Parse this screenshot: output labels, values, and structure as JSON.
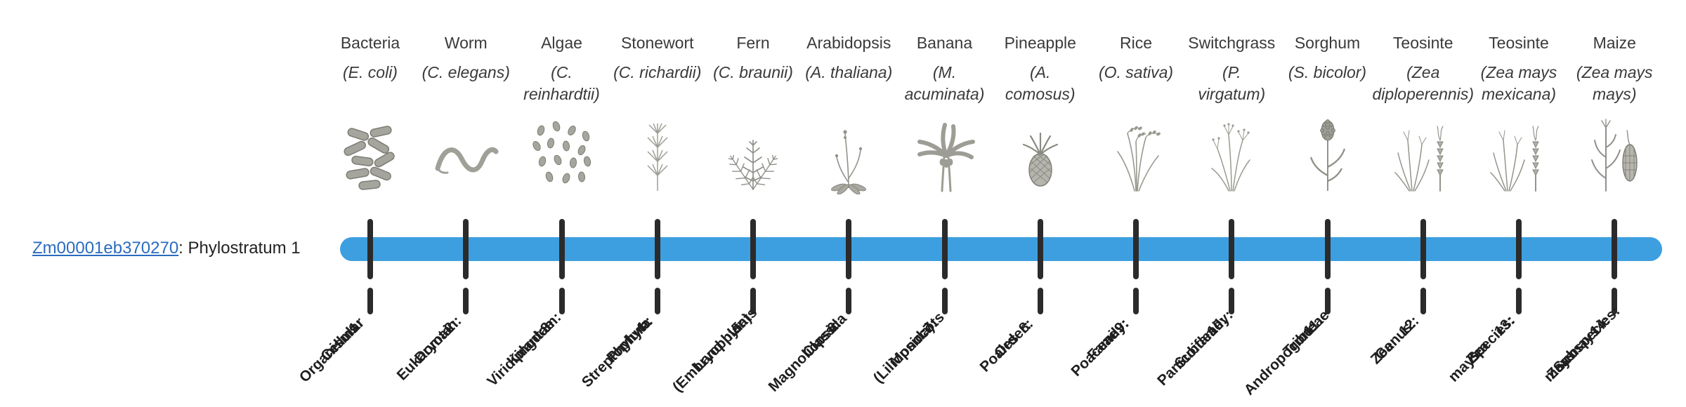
{
  "colors": {
    "bar": "#3d9fe0",
    "tick": "#2b2b2b",
    "link": "#2a6bc0",
    "text": "#3a3a3a",
    "stratum_text": "#1f1f1f",
    "art": "#8f8f87"
  },
  "gene": {
    "id": "Zm00001eb370270",
    "suffix": ": Phylostratum 1"
  },
  "phylostrata": [
    {
      "number": 1,
      "common_name": "Bacteria",
      "scientific_lines": [
        "(E. coli)"
      ],
      "icon": "bacteria",
      "stratum_lines": [
        "1:",
        "Cellular",
        "Organisms"
      ]
    },
    {
      "number": 2,
      "common_name": "Worm",
      "scientific_lines": [
        "(C. elegans)"
      ],
      "icon": "worm",
      "stratum_lines": [
        "2:",
        "Domain:",
        "Eukaryota"
      ]
    },
    {
      "number": 3,
      "common_name": "Algae",
      "scientific_lines": [
        "(C.",
        "reinhardtii)"
      ],
      "icon": "algae",
      "stratum_lines": [
        "3:",
        "Kingdom:",
        "Viridiplantae"
      ]
    },
    {
      "number": 4,
      "common_name": "Stonewort",
      "scientific_lines": [
        "(C. richardii)"
      ],
      "icon": "stonewort",
      "stratum_lines": [
        "4:",
        "Phylum:",
        "Streptophyta"
      ]
    },
    {
      "number": 5,
      "common_name": "Fern",
      "scientific_lines": [
        "(C. braunii)"
      ],
      "icon": "fern",
      "stratum_lines": [
        "5:",
        "Land plants",
        "(Embryophyta)"
      ]
    },
    {
      "number": 6,
      "common_name": "Arabidopsis",
      "scientific_lines": [
        "(A. thaliana)"
      ],
      "icon": "arabidopsis",
      "stratum_lines": [
        "6:",
        "Class:",
        "Magnoliopsida"
      ]
    },
    {
      "number": 7,
      "common_name": "Banana",
      "scientific_lines": [
        "(M.",
        "acuminata)"
      ],
      "icon": "banana",
      "stratum_lines": [
        "7:",
        "Monocots",
        "(Liliopsida)"
      ]
    },
    {
      "number": 8,
      "common_name": "Pineapple",
      "scientific_lines": [
        "(A.",
        "comosus)"
      ],
      "icon": "pineapple",
      "stratum_lines": [
        "8:",
        "Order:",
        "Poales"
      ]
    },
    {
      "number": 9,
      "common_name": "Rice",
      "scientific_lines": [
        "(O. sativa)"
      ],
      "icon": "rice",
      "stratum_lines": [
        "9:",
        "Family:",
        "Poaceae"
      ]
    },
    {
      "number": 10,
      "common_name": "Switchgrass",
      "scientific_lines": [
        "(P.",
        "virgatum)"
      ],
      "icon": "switchgrass",
      "stratum_lines": [
        "10:",
        "Subfamily:",
        "Panicoideae"
      ]
    },
    {
      "number": 11,
      "common_name": "Sorghum",
      "scientific_lines": [
        "(S. bicolor)"
      ],
      "icon": "sorghum",
      "stratum_lines": [
        "11:",
        "Tribe:",
        "Andropogoneae"
      ]
    },
    {
      "number": 12,
      "common_name": "Teosinte",
      "scientific_lines": [
        "(Zea",
        "diploperennis)"
      ],
      "icon": "teosinte",
      "stratum_lines": [
        "12:",
        "Genus:",
        "Zea"
      ]
    },
    {
      "number": 13,
      "common_name": "Teosinte",
      "scientific_lines": [
        "(Zea mays",
        "mexicana)"
      ],
      "icon": "teosinte",
      "stratum_lines": [
        "13:",
        "Species:",
        "Zea",
        "mays"
      ]
    },
    {
      "number": 14,
      "common_name": "Maize",
      "scientific_lines": [
        "(Zea mays",
        "mays)"
      ],
      "icon": "maize",
      "stratum_lines": [
        "14:",
        "Subspecies:",
        "Zea mays",
        "mays"
      ]
    }
  ]
}
